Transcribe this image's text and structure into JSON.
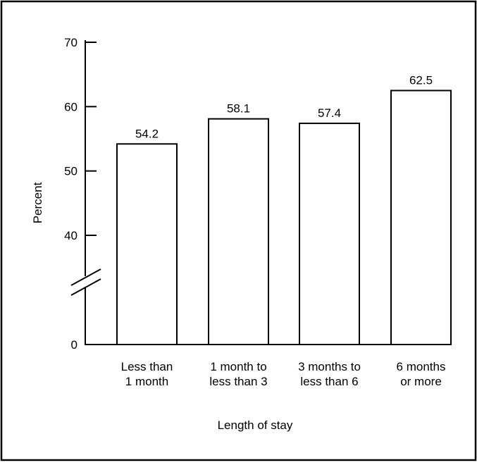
{
  "chart_data": {
    "type": "bar",
    "title": "",
    "xlabel": "Length of stay",
    "ylabel": "Percent",
    "categories": [
      [
        "Less than",
        "1 month"
      ],
      [
        "1 month to",
        "less than 3"
      ],
      [
        "3 months to",
        "less than 6"
      ],
      [
        "6 months",
        "or more"
      ]
    ],
    "values": [
      54.2,
      58.1,
      57.4,
      62.5
    ],
    "data_labels": [
      "54.2",
      "58.1",
      "57.4",
      "62.5"
    ],
    "y_ticks": [
      {
        "value": 0,
        "label": "0"
      },
      {
        "value": 40,
        "label": "40"
      },
      {
        "value": 50,
        "label": "50"
      },
      {
        "value": 60,
        "label": "60"
      },
      {
        "value": 70,
        "label": "70"
      }
    ],
    "ylim": [
      0,
      70
    ],
    "axis_break": true,
    "grid": false,
    "colors": {
      "bar_fill": "#ffffff",
      "bar_stroke": "#000000",
      "axis": "#000000",
      "frame": "#000000"
    }
  }
}
